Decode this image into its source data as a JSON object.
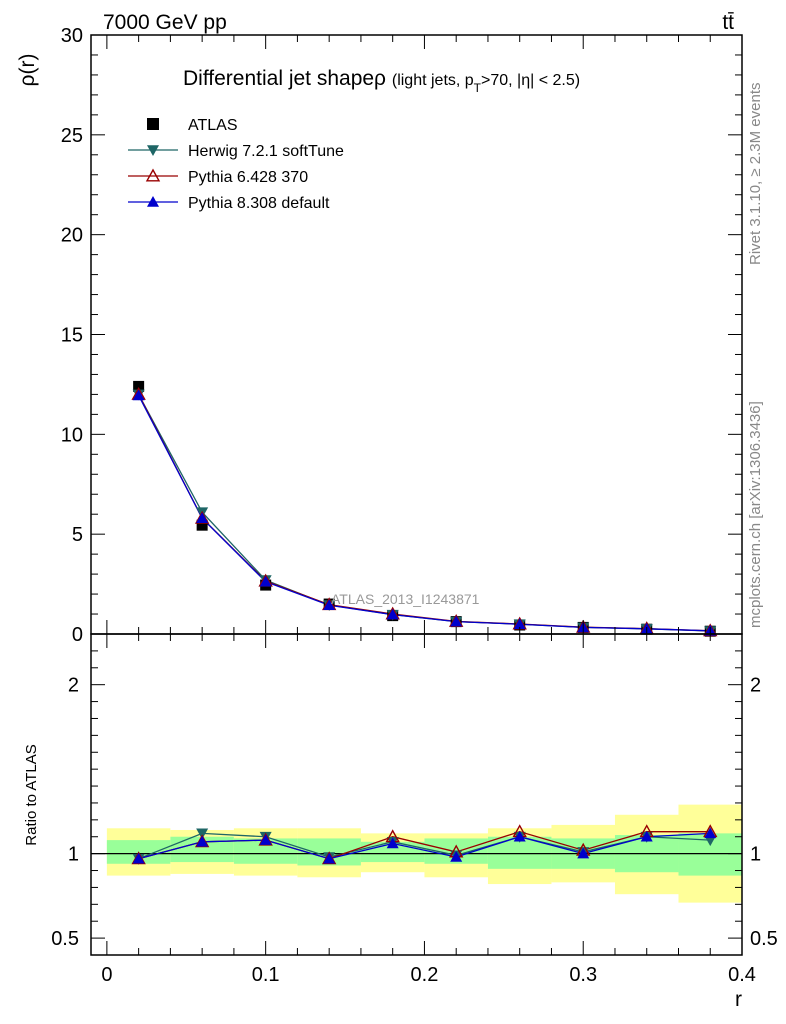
{
  "header": {
    "left": "7000 GeV pp",
    "right": "tt̄"
  },
  "side_labels": {
    "rivet": "Rivet 3.1.10, ≥ 2.3M events",
    "mcplots": "mcplots.cern.ch [arXiv:1306.3436]"
  },
  "chart_data": {
    "type": "line",
    "title": "Differential jet shapeρ",
    "subtitle": "(light jets, p",
    "subtitle_sub": "T",
    "subtitle_rest": ">70, |η| < 2.5)",
    "analysis_label": "ATLAS_2013_I1243871",
    "xlabel": "r",
    "xlim": [
      -0.01,
      0.4
    ],
    "x_ticks": [
      "0",
      "0.1",
      "0.2",
      "0.3",
      "0.4"
    ],
    "x": [
      0.02,
      0.06,
      0.1,
      0.14,
      0.18,
      0.22,
      0.26,
      0.3,
      0.34,
      0.38
    ],
    "main": {
      "ylabel": "ρ(r)",
      "ylim": [
        0,
        30
      ],
      "y_ticks": [
        "0",
        "5",
        "10",
        "15",
        "20",
        "25",
        "30"
      ]
    },
    "ratio": {
      "ylabel": "Ratio to ATLAS",
      "ylim": [
        0.4,
        2.3
      ],
      "y_ticks": [
        "0.5",
        "1",
        "2"
      ],
      "bands": {
        "inner": [
          [
            0.94,
            1.08
          ],
          [
            0.95,
            1.1
          ],
          [
            0.94,
            1.09
          ],
          [
            0.93,
            1.09
          ],
          [
            0.95,
            1.07
          ],
          [
            0.94,
            1.09
          ],
          [
            0.91,
            1.1
          ],
          [
            0.91,
            1.09
          ],
          [
            0.89,
            1.11
          ],
          [
            0.87,
            1.12
          ]
        ],
        "outer": [
          [
            0.87,
            1.15
          ],
          [
            0.88,
            1.14
          ],
          [
            0.87,
            1.15
          ],
          [
            0.86,
            1.15
          ],
          [
            0.89,
            1.12
          ],
          [
            0.86,
            1.12
          ],
          [
            0.82,
            1.15
          ],
          [
            0.83,
            1.17
          ],
          [
            0.76,
            1.23
          ],
          [
            0.71,
            1.29
          ]
        ]
      }
    },
    "series": [
      {
        "name": "ATLAS",
        "marker": "square",
        "color": "#000000",
        "values": [
          12.4,
          5.45,
          2.45,
          1.5,
          0.92,
          0.62,
          0.45,
          0.33,
          0.24,
          0.14
        ],
        "ratio": [
          1.0,
          1.0,
          1.0,
          1.0,
          1.0,
          1.0,
          1.0,
          1.0,
          1.0,
          1.0
        ]
      },
      {
        "name": "Herwig 7.2.1 softTune",
        "marker": "triangle-down",
        "color": "#1e6666",
        "values": [
          12.0,
          6.1,
          2.7,
          1.45,
          0.97,
          0.62,
          0.49,
          0.33,
          0.26,
          0.15
        ],
        "ratio": [
          0.97,
          1.12,
          1.1,
          0.98,
          1.07,
          0.99,
          1.1,
          1.01,
          1.1,
          1.08
        ]
      },
      {
        "name": "Pythia 6.428 370",
        "marker": "triangle-up-open",
        "color": "#990000",
        "values": [
          12.0,
          5.8,
          2.65,
          1.47,
          1.0,
          0.63,
          0.5,
          0.34,
          0.27,
          0.16
        ],
        "ratio": [
          0.97,
          1.07,
          1.08,
          0.97,
          1.1,
          1.01,
          1.13,
          1.02,
          1.13,
          1.13
        ]
      },
      {
        "name": "Pythia 8.308 default",
        "marker": "triangle-up",
        "color": "#0000cc",
        "values": [
          11.95,
          5.8,
          2.62,
          1.44,
          0.97,
          0.62,
          0.49,
          0.33,
          0.26,
          0.16
        ],
        "ratio": [
          0.97,
          1.07,
          1.08,
          0.97,
          1.06,
          0.98,
          1.1,
          1.0,
          1.1,
          1.12
        ]
      }
    ]
  }
}
